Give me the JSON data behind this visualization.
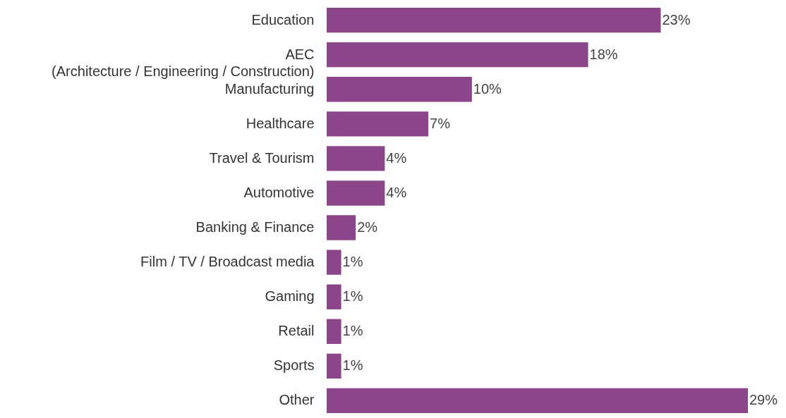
{
  "chart_data": {
    "type": "bar",
    "orientation": "horizontal",
    "categories": [
      "Education",
      "AEC\n(Architecture / Engineering / Construction)",
      "Manufacturing",
      "Healthcare",
      "Travel & Tourism",
      "Automotive",
      "Banking & Finance",
      "Film / TV / Broadcast media",
      "Gaming",
      "Retail",
      "Sports",
      "Other"
    ],
    "values": [
      23,
      18,
      10,
      7,
      4,
      4,
      2,
      1,
      1,
      1,
      1,
      29
    ],
    "value_labels": [
      "23%",
      "18%",
      "10%",
      "7%",
      "4%",
      "4%",
      "2%",
      "1%",
      "1%",
      "1%",
      "1%",
      "29%"
    ],
    "color": "#8c4589",
    "tick_labels": "y"
  }
}
